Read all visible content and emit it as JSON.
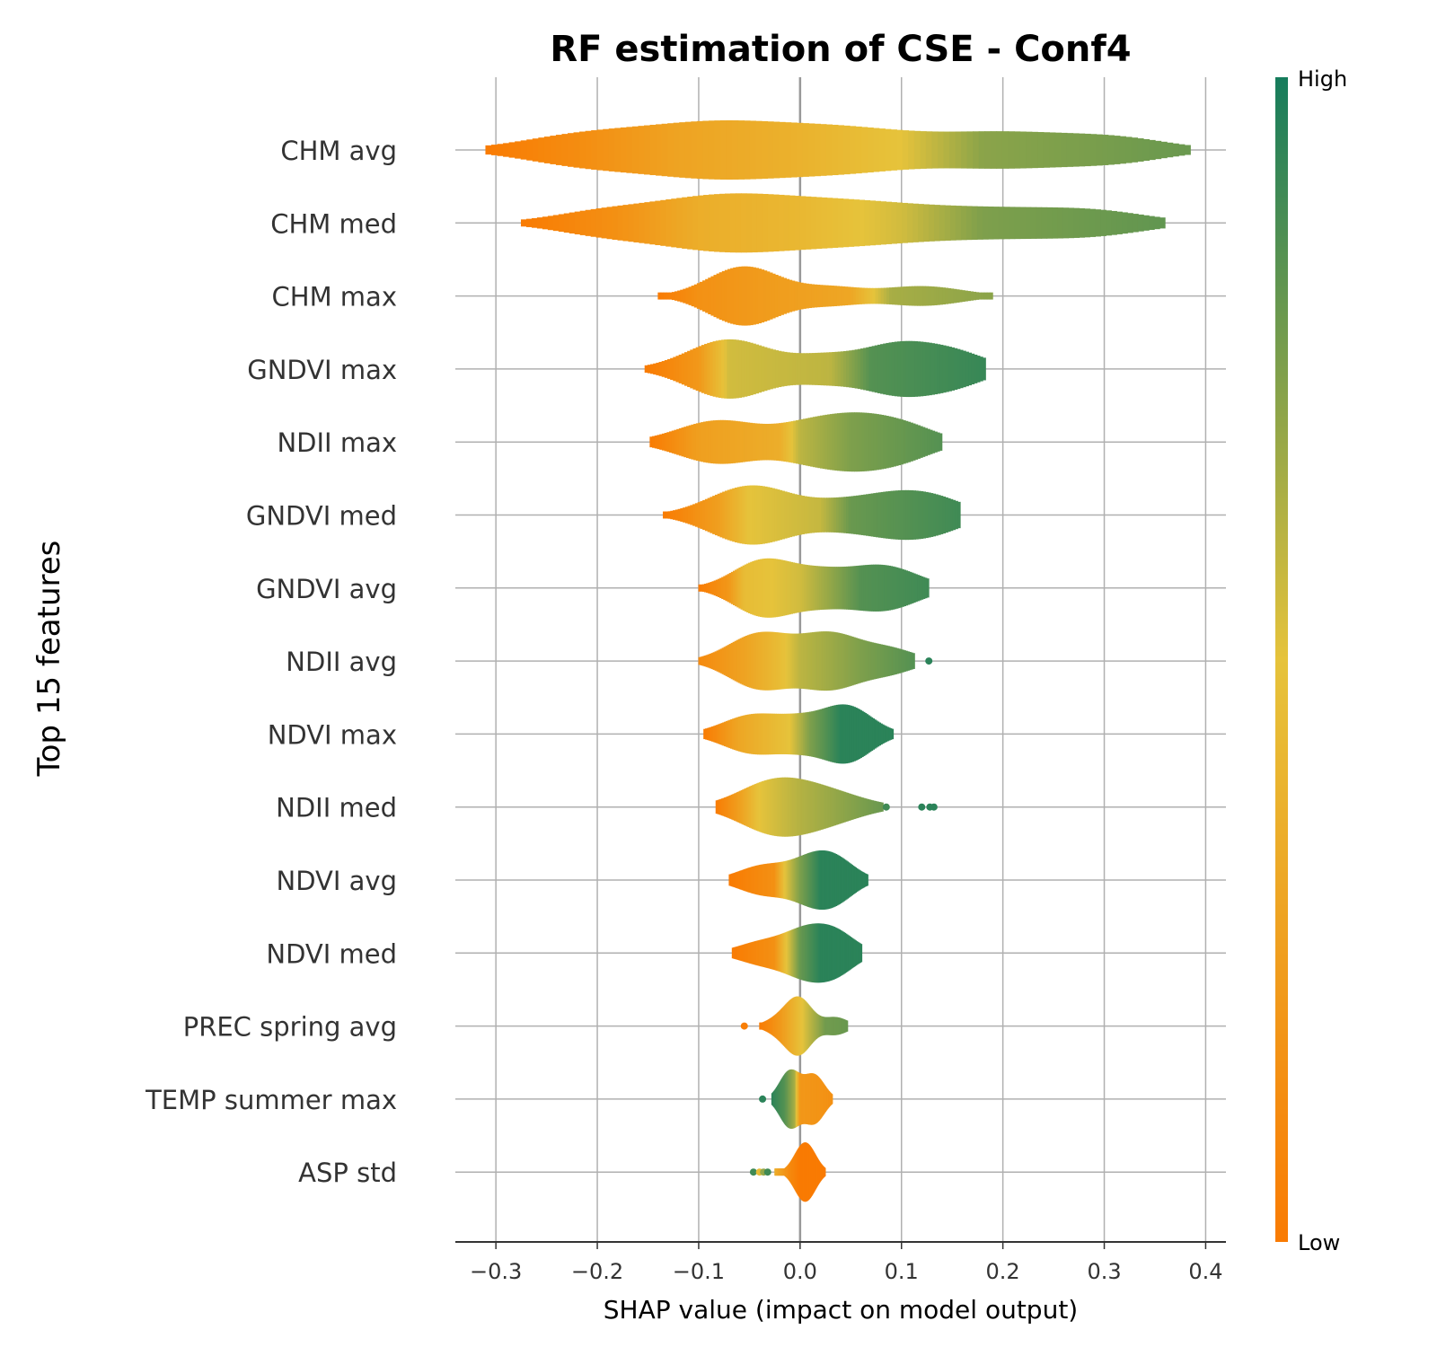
{
  "chart_data": {
    "type": "violin",
    "title": "RF estimation of CSE - Conf4",
    "xlabel": "SHAP value (impact on model output)",
    "ylabel": "Top 15 features",
    "xlim": [
      -0.34,
      0.42
    ],
    "xticks": [
      -0.3,
      -0.2,
      -0.1,
      0.0,
      0.1,
      0.2,
      0.3,
      0.4
    ],
    "xtick_labels": [
      "−0.3",
      "−0.2",
      "−0.1",
      "0.0",
      "0.1",
      "0.2",
      "0.3",
      "0.4"
    ],
    "grid": true,
    "colorbar": {
      "high_label": "High",
      "low_label": "Low",
      "high_color": "#167c5c",
      "low_color": "#f97b03",
      "mid_color": "#e6c33b"
    },
    "features": [
      {
        "name": "CHM avg",
        "min": -0.31,
        "max": 0.385,
        "peaks": [
          [
            -0.22,
            0.3,
            0.06
          ],
          [
            -0.08,
            0.7,
            0.08
          ],
          [
            0.05,
            0.35,
            0.06
          ],
          [
            0.2,
            0.45,
            0.08
          ],
          [
            0.32,
            0.2,
            0.05
          ]
        ],
        "colors": [
          [
            -0.31,
            0.0
          ],
          [
            -0.22,
            0.12
          ],
          [
            -0.12,
            0.28
          ],
          [
            0.0,
            0.38
          ],
          [
            0.1,
            0.5
          ],
          [
            0.18,
            0.72
          ],
          [
            0.385,
            0.8
          ]
        ]
      },
      {
        "name": "CHM med",
        "min": -0.275,
        "max": 0.36,
        "peaks": [
          [
            -0.2,
            0.25,
            0.05
          ],
          [
            -0.08,
            0.75,
            0.07
          ],
          [
            0.05,
            0.5,
            0.07
          ],
          [
            0.2,
            0.4,
            0.08
          ],
          [
            0.3,
            0.2,
            0.05
          ]
        ],
        "colors": [
          [
            -0.275,
            0.0
          ],
          [
            -0.18,
            0.15
          ],
          [
            -0.1,
            0.35
          ],
          [
            0.0,
            0.42
          ],
          [
            0.1,
            0.55
          ],
          [
            0.18,
            0.75
          ],
          [
            0.36,
            0.82
          ]
        ]
      },
      {
        "name": "CHM max",
        "min": -0.14,
        "max": 0.19,
        "peaks": [
          [
            -0.055,
            0.9,
            0.035
          ],
          [
            0.03,
            0.25,
            0.03
          ],
          [
            0.12,
            0.3,
            0.04
          ]
        ],
        "colors": [
          [
            -0.14,
            0.0
          ],
          [
            -0.1,
            0.15
          ],
          [
            -0.04,
            0.22
          ],
          [
            0.05,
            0.3
          ],
          [
            0.09,
            0.65
          ],
          [
            0.19,
            0.72
          ]
        ]
      },
      {
        "name": "GNDVI max",
        "min": -0.153,
        "max": 0.183,
        "peaks": [
          [
            -0.07,
            0.85,
            0.04
          ],
          [
            0.02,
            0.3,
            0.03
          ],
          [
            0.1,
            0.75,
            0.04
          ],
          [
            0.16,
            0.3,
            0.03
          ]
        ],
        "colors": [
          [
            -0.153,
            0.0
          ],
          [
            -0.1,
            0.2
          ],
          [
            -0.07,
            0.55
          ],
          [
            0.03,
            0.6
          ],
          [
            0.07,
            0.85
          ],
          [
            0.183,
            0.92
          ]
        ]
      },
      {
        "name": "NDII max",
        "min": -0.148,
        "max": 0.14,
        "peaks": [
          [
            -0.08,
            0.7,
            0.04
          ],
          [
            0.0,
            0.3,
            0.03
          ],
          [
            0.055,
            0.85,
            0.04
          ],
          [
            0.11,
            0.3,
            0.03
          ]
        ],
        "colors": [
          [
            -0.148,
            0.0
          ],
          [
            -0.1,
            0.25
          ],
          [
            -0.02,
            0.35
          ],
          [
            0.0,
            0.6
          ],
          [
            0.05,
            0.75
          ],
          [
            0.14,
            0.85
          ]
        ]
      },
      {
        "name": "GNDVI med",
        "min": -0.135,
        "max": 0.158,
        "peaks": [
          [
            -0.07,
            0.5,
            0.035
          ],
          [
            -0.035,
            0.75,
            0.035
          ],
          [
            0.03,
            0.3,
            0.03
          ],
          [
            0.095,
            0.8,
            0.04
          ],
          [
            0.14,
            0.3,
            0.03
          ]
        ],
        "colors": [
          [
            -0.135,
            0.0
          ],
          [
            -0.08,
            0.25
          ],
          [
            -0.05,
            0.5
          ],
          [
            0.02,
            0.58
          ],
          [
            0.05,
            0.8
          ],
          [
            0.158,
            0.9
          ]
        ]
      },
      {
        "name": "GNDVI avg",
        "min": -0.1,
        "max": 0.127,
        "peaks": [
          [
            -0.035,
            0.75,
            0.03
          ],
          [
            0.02,
            0.3,
            0.025
          ],
          [
            0.08,
            0.6,
            0.035
          ]
        ],
        "colors": [
          [
            -0.1,
            0.0
          ],
          [
            -0.07,
            0.2
          ],
          [
            -0.055,
            0.45
          ],
          [
            0.0,
            0.55
          ],
          [
            0.06,
            0.85
          ],
          [
            0.127,
            0.9
          ]
        ]
      },
      {
        "name": "NDII avg",
        "min": -0.1,
        "max": 0.113,
        "peaks": [
          [
            -0.04,
            0.75,
            0.03
          ],
          [
            0.03,
            0.75,
            0.03
          ],
          [
            0.09,
            0.3,
            0.025
          ]
        ],
        "colors": [
          [
            -0.1,
            0.1
          ],
          [
            -0.05,
            0.3
          ],
          [
            -0.02,
            0.45
          ],
          [
            0.0,
            0.6
          ],
          [
            0.06,
            0.75
          ],
          [
            0.113,
            0.85
          ]
        ]
      },
      {
        "name": "NDVI max",
        "min": -0.095,
        "max": 0.092,
        "peaks": [
          [
            -0.045,
            0.65,
            0.03
          ],
          [
            0.0,
            0.3,
            0.02
          ],
          [
            0.045,
            0.95,
            0.025
          ]
        ],
        "colors": [
          [
            -0.095,
            0.0
          ],
          [
            -0.06,
            0.3
          ],
          [
            -0.01,
            0.5
          ],
          [
            0.01,
            0.75
          ],
          [
            0.04,
            0.95
          ],
          [
            0.092,
            0.95
          ]
        ]
      },
      {
        "name": "NDII med",
        "min": -0.083,
        "max": 0.082,
        "peaks": [
          [
            -0.025,
            0.8,
            0.035
          ],
          [
            0.03,
            0.4,
            0.035
          ]
        ],
        "colors": [
          [
            -0.083,
            0.0
          ],
          [
            -0.06,
            0.25
          ],
          [
            -0.04,
            0.5
          ],
          [
            0.0,
            0.62
          ],
          [
            0.082,
            0.8
          ]
        ]
      },
      {
        "name": "NDVI avg",
        "min": -0.07,
        "max": 0.067,
        "peaks": [
          [
            -0.035,
            0.55,
            0.025
          ],
          [
            0.01,
            0.6,
            0.02
          ],
          [
            0.035,
            0.7,
            0.02
          ]
        ],
        "colors": [
          [
            -0.07,
            0.0
          ],
          [
            -0.025,
            0.15
          ],
          [
            -0.015,
            0.5
          ],
          [
            0.0,
            0.75
          ],
          [
            0.02,
            0.95
          ],
          [
            0.067,
            0.95
          ]
        ]
      },
      {
        "name": "NDVI med",
        "min": -0.067,
        "max": 0.061,
        "peaks": [
          [
            -0.035,
            0.45,
            0.025
          ],
          [
            0.005,
            0.7,
            0.02
          ],
          [
            0.035,
            0.75,
            0.02
          ]
        ],
        "colors": [
          [
            -0.067,
            0.0
          ],
          [
            -0.025,
            0.15
          ],
          [
            -0.015,
            0.45
          ],
          [
            0.0,
            0.8
          ],
          [
            0.02,
            0.95
          ],
          [
            0.061,
            0.95
          ]
        ]
      },
      {
        "name": "PREC spring avg",
        "min": -0.04,
        "max": 0.047,
        "peaks": [
          [
            -0.015,
            0.3,
            0.015
          ],
          [
            0.0,
            0.65,
            0.012
          ],
          [
            0.035,
            0.25,
            0.012
          ]
        ],
        "colors": [
          [
            -0.04,
            0.0
          ],
          [
            -0.02,
            0.2
          ],
          [
            -0.005,
            0.4
          ],
          [
            0.01,
            0.6
          ],
          [
            0.025,
            0.78
          ],
          [
            0.047,
            0.8
          ]
        ]
      },
      {
        "name": "TEMP summer max",
        "min": -0.028,
        "max": 0.032,
        "peaks": [
          [
            -0.01,
            0.65,
            0.01
          ],
          [
            0.014,
            0.55,
            0.01
          ]
        ],
        "colors": [
          [
            -0.028,
            0.95
          ],
          [
            -0.015,
            0.85
          ],
          [
            -0.005,
            0.65
          ],
          [
            0.0,
            0.2
          ],
          [
            0.032,
            0.15
          ]
        ]
      },
      {
        "name": "ASP std",
        "min": -0.025,
        "max": 0.025,
        "peaks": [
          [
            0.005,
            0.65,
            0.01
          ]
        ],
        "colors": [
          [
            -0.025,
            0.35
          ],
          [
            -0.01,
            0.1
          ],
          [
            0.0,
            0.0
          ],
          [
            0.025,
            0.0
          ]
        ]
      }
    ],
    "outliers": [
      {
        "feature": "NDII avg",
        "x": [
          0.127
        ],
        "colors": [
          0.95
        ]
      },
      {
        "feature": "NDII med",
        "x": [
          0.085,
          0.12,
          0.128,
          0.132
        ],
        "colors": [
          0.9,
          0.95,
          0.95,
          0.95
        ]
      },
      {
        "feature": "PREC spring avg",
        "x": [
          -0.055
        ],
        "colors": [
          0.02
        ]
      },
      {
        "feature": "TEMP summer max",
        "x": [
          -0.037
        ],
        "colors": [
          0.95
        ]
      },
      {
        "feature": "ASP std",
        "x": [
          -0.046,
          -0.04,
          -0.036,
          -0.032
        ],
        "colors": [
          0.9,
          0.45,
          0.7,
          0.9
        ]
      }
    ]
  }
}
